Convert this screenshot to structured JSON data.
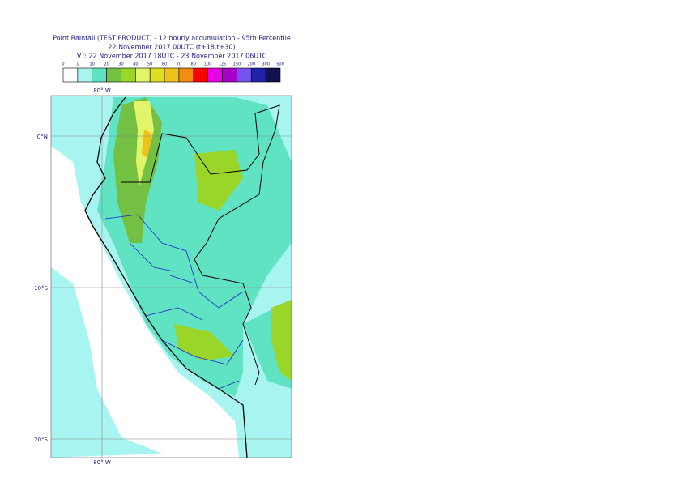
{
  "header": {
    "title_lines": [
      "Point Rainfall (TEST PRODUCT) - 12 hourly accumulation - 95th Percentile",
      "22 November 2017 00UTC (t+18,t+30)",
      "VT: 22 November 2017 18UTC - 23 November 2017 06UTC"
    ]
  },
  "legend": {
    "labels": [
      "0",
      "1",
      "10",
      "20",
      "30",
      "40",
      "50",
      "60",
      "70",
      "80",
      "100",
      "125",
      "150",
      "200",
      "300",
      "500"
    ],
    "colors": [
      "#ffffff",
      "#a8f4f0",
      "#5fe3c3",
      "#74c043",
      "#9ad62a",
      "#e2f46a",
      "#dede22",
      "#efc21a",
      "#f38d12",
      "#ff0000",
      "#e600e6",
      "#a800c8",
      "#7452ee",
      "#2222a8",
      "#12124f"
    ]
  },
  "map": {
    "lon_labels": [
      "80° W",
      "80° W"
    ],
    "lat_labels": [
      "0°N",
      "10°S",
      "20°S"
    ]
  }
}
